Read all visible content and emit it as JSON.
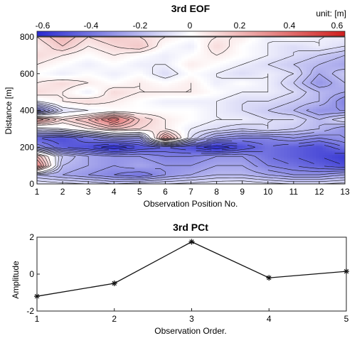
{
  "colors": {
    "negative": "#3038d6",
    "neutral": "#ffffff",
    "positive": "#d62a2a",
    "contour": "#111111"
  },
  "chart_data": [
    {
      "type": "heatmap",
      "title": "3rd EOF",
      "colorbar": {
        "unit_label": "unit: [m]",
        "range": [
          -0.6,
          0.6
        ],
        "tick_labels": [
          "-0.6",
          "-0.4",
          "-0.2",
          "0",
          "0.2",
          "0.4",
          "0.6"
        ],
        "placement": "top"
      },
      "xlabel": "Observation Position No.",
      "ylabel": "Distance [m]",
      "xlim": [
        1,
        13
      ],
      "ylim": [
        0,
        800
      ],
      "x_ticks": [
        "1",
        "2",
        "3",
        "4",
        "5",
        "6",
        "7",
        "8",
        "9",
        "10",
        "11",
        "12",
        "13"
      ],
      "y_ticks": [
        "0",
        "200",
        "400",
        "600",
        "800"
      ],
      "x": [
        1,
        2,
        3,
        4,
        5,
        6,
        7,
        8,
        9,
        10,
        11,
        12,
        13
      ],
      "y": [
        0,
        50,
        100,
        150,
        200,
        250,
        300,
        350,
        400,
        450,
        500,
        550,
        600,
        650,
        700,
        750,
        800
      ],
      "z": [
        [
          -0.05,
          -0.08,
          -0.1,
          -0.15,
          -0.12,
          -0.1,
          -0.08,
          -0.06,
          -0.05,
          -0.08,
          -0.1,
          -0.1,
          -0.08
        ],
        [
          -0.2,
          -0.25,
          -0.3,
          -0.35,
          -0.4,
          -0.3,
          -0.25,
          -0.2,
          -0.2,
          -0.25,
          -0.3,
          -0.3,
          -0.25
        ],
        [
          0.35,
          -0.2,
          -0.25,
          -0.3,
          -0.25,
          -0.3,
          -0.3,
          -0.25,
          -0.25,
          -0.35,
          -0.4,
          -0.45,
          -0.5
        ],
        [
          0.2,
          -0.15,
          -0.25,
          -0.3,
          -0.3,
          -0.35,
          -0.35,
          -0.3,
          -0.3,
          -0.4,
          -0.45,
          -0.5,
          -0.55
        ],
        [
          -0.3,
          -0.45,
          -0.5,
          -0.6,
          -0.5,
          -0.45,
          -0.5,
          -0.6,
          -0.5,
          -0.4,
          -0.45,
          -0.5,
          -0.4
        ],
        [
          -0.45,
          -0.5,
          -0.4,
          -0.3,
          -0.3,
          0.3,
          -0.1,
          -0.3,
          -0.35,
          -0.35,
          -0.3,
          -0.35,
          -0.3
        ],
        [
          -0.1,
          -0.05,
          0.05,
          0.15,
          0.1,
          0.05,
          -0.05,
          -0.1,
          -0.15,
          -0.1,
          -0.15,
          -0.2,
          -0.3
        ],
        [
          0.3,
          0.1,
          0.2,
          0.4,
          0.15,
          0.05,
          0.0,
          -0.05,
          -0.05,
          -0.1,
          -0.1,
          -0.2,
          -0.1
        ],
        [
          -0.4,
          -0.1,
          -0.05,
          0.0,
          0.0,
          0.0,
          0.0,
          -0.05,
          -0.1,
          -0.15,
          -0.2,
          -0.3,
          -0.3
        ],
        [
          -0.05,
          0.05,
          0.1,
          0.05,
          0.0,
          -0.05,
          -0.05,
          -0.05,
          -0.1,
          -0.1,
          -0.15,
          -0.2,
          -0.35
        ],
        [
          0.1,
          0.05,
          -0.05,
          0.1,
          0.05,
          0.05,
          0.05,
          0.0,
          -0.05,
          -0.05,
          -0.1,
          -0.2,
          -0.25
        ],
        [
          0.05,
          0.1,
          0.05,
          0.0,
          0.05,
          0.0,
          0.05,
          -0.05,
          0.0,
          -0.05,
          -0.15,
          -0.3,
          -0.2
        ],
        [
          0.0,
          -0.05,
          0.0,
          -0.05,
          0.0,
          -0.1,
          0.0,
          -0.05,
          -0.1,
          -0.05,
          -0.1,
          -0.25,
          -0.15
        ],
        [
          0.05,
          0.0,
          -0.05,
          0.0,
          -0.05,
          -0.05,
          0.05,
          0.0,
          -0.05,
          -0.1,
          -0.15,
          -0.2,
          -0.25
        ],
        [
          0.1,
          0.05,
          0.0,
          0.05,
          0.0,
          -0.05,
          0.0,
          0.05,
          0.0,
          -0.05,
          -0.1,
          -0.15,
          -0.2
        ],
        [
          0.05,
          0.15,
          0.05,
          0.1,
          0.15,
          0.0,
          -0.05,
          0.1,
          0.0,
          -0.05,
          -0.1,
          -0.05,
          -0.1
        ],
        [
          0.1,
          0.2,
          0.1,
          0.15,
          0.1,
          0.05,
          0.0,
          0.05,
          0.05,
          -0.05,
          0.0,
          -0.05,
          -0.05
        ]
      ]
    },
    {
      "type": "line",
      "title": "3rd PCt",
      "xlabel": "Observation Order.",
      "ylabel": "Amplitude",
      "xlim": [
        1,
        5
      ],
      "ylim": [
        -2,
        2
      ],
      "x_ticks": [
        "1",
        "2",
        "3",
        "4",
        "5"
      ],
      "y_ticks": [
        "-2",
        "0",
        "2"
      ],
      "marker": "asterisk",
      "x": [
        1,
        2,
        3,
        4,
        5
      ],
      "y": [
        -1.2,
        -0.5,
        1.75,
        -0.2,
        0.15
      ]
    }
  ]
}
